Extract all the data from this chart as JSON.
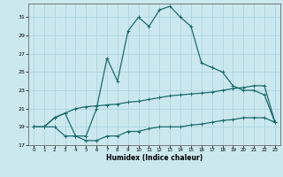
{
  "xlabel": "Humidex (Indice chaleur)",
  "background_color": "#cce8ef",
  "grid_color": "#aed4de",
  "line_color": "#1a6b6b",
  "xlim": [
    -0.5,
    23.5
  ],
  "ylim": [
    17,
    32.5
  ],
  "xticks": [
    0,
    1,
    2,
    3,
    4,
    5,
    6,
    7,
    8,
    9,
    10,
    11,
    12,
    13,
    14,
    15,
    16,
    17,
    18,
    19,
    20,
    21,
    22,
    23
  ],
  "yticks": [
    17,
    19,
    21,
    23,
    25,
    27,
    29,
    31
  ],
  "line1_x": [
    0,
    1,
    2,
    3,
    4,
    5,
    6,
    7,
    8,
    9,
    10,
    11,
    12,
    13,
    14,
    15,
    16,
    17,
    18,
    19,
    20,
    21,
    22,
    23
  ],
  "line1_y": [
    19,
    19,
    20,
    20.5,
    18,
    18,
    21,
    26.5,
    24,
    29.5,
    31,
    30,
    31.8,
    32.2,
    31,
    30,
    26,
    25.5,
    25,
    23.5,
    23,
    23,
    22.5,
    19.5
  ],
  "line2_x": [
    0,
    1,
    2,
    3,
    4,
    5,
    6,
    7,
    8,
    9,
    10,
    11,
    12,
    13,
    14,
    15,
    16,
    17,
    18,
    19,
    20,
    21,
    22,
    23
  ],
  "line2_y": [
    19,
    19,
    20,
    20.5,
    21,
    21.2,
    21.3,
    21.4,
    21.5,
    21.7,
    21.8,
    22,
    22.2,
    22.4,
    22.5,
    22.6,
    22.7,
    22.8,
    23,
    23.2,
    23.3,
    23.5,
    23.5,
    19.5
  ],
  "line3_x": [
    0,
    1,
    2,
    3,
    4,
    5,
    6,
    7,
    8,
    9,
    10,
    11,
    12,
    13,
    14,
    15,
    16,
    17,
    18,
    19,
    20,
    21,
    22,
    23
  ],
  "line3_y": [
    19,
    19,
    19,
    18,
    18,
    17.5,
    17.5,
    18,
    18,
    18.5,
    18.5,
    18.8,
    19,
    19,
    19,
    19.2,
    19.3,
    19.5,
    19.7,
    19.8,
    20,
    20,
    20,
    19.5
  ]
}
